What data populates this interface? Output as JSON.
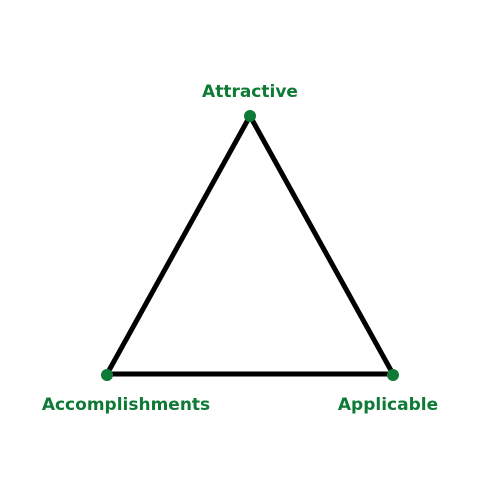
{
  "colors": {
    "accent": "#0e7a35",
    "edge": "#000000",
    "background": "#ffffff"
  },
  "nodes": {
    "attractive": {
      "label": "Attractive"
    },
    "accomplishments": {
      "label": "Accomplishments"
    },
    "applicable": {
      "label": "Applicable"
    }
  }
}
